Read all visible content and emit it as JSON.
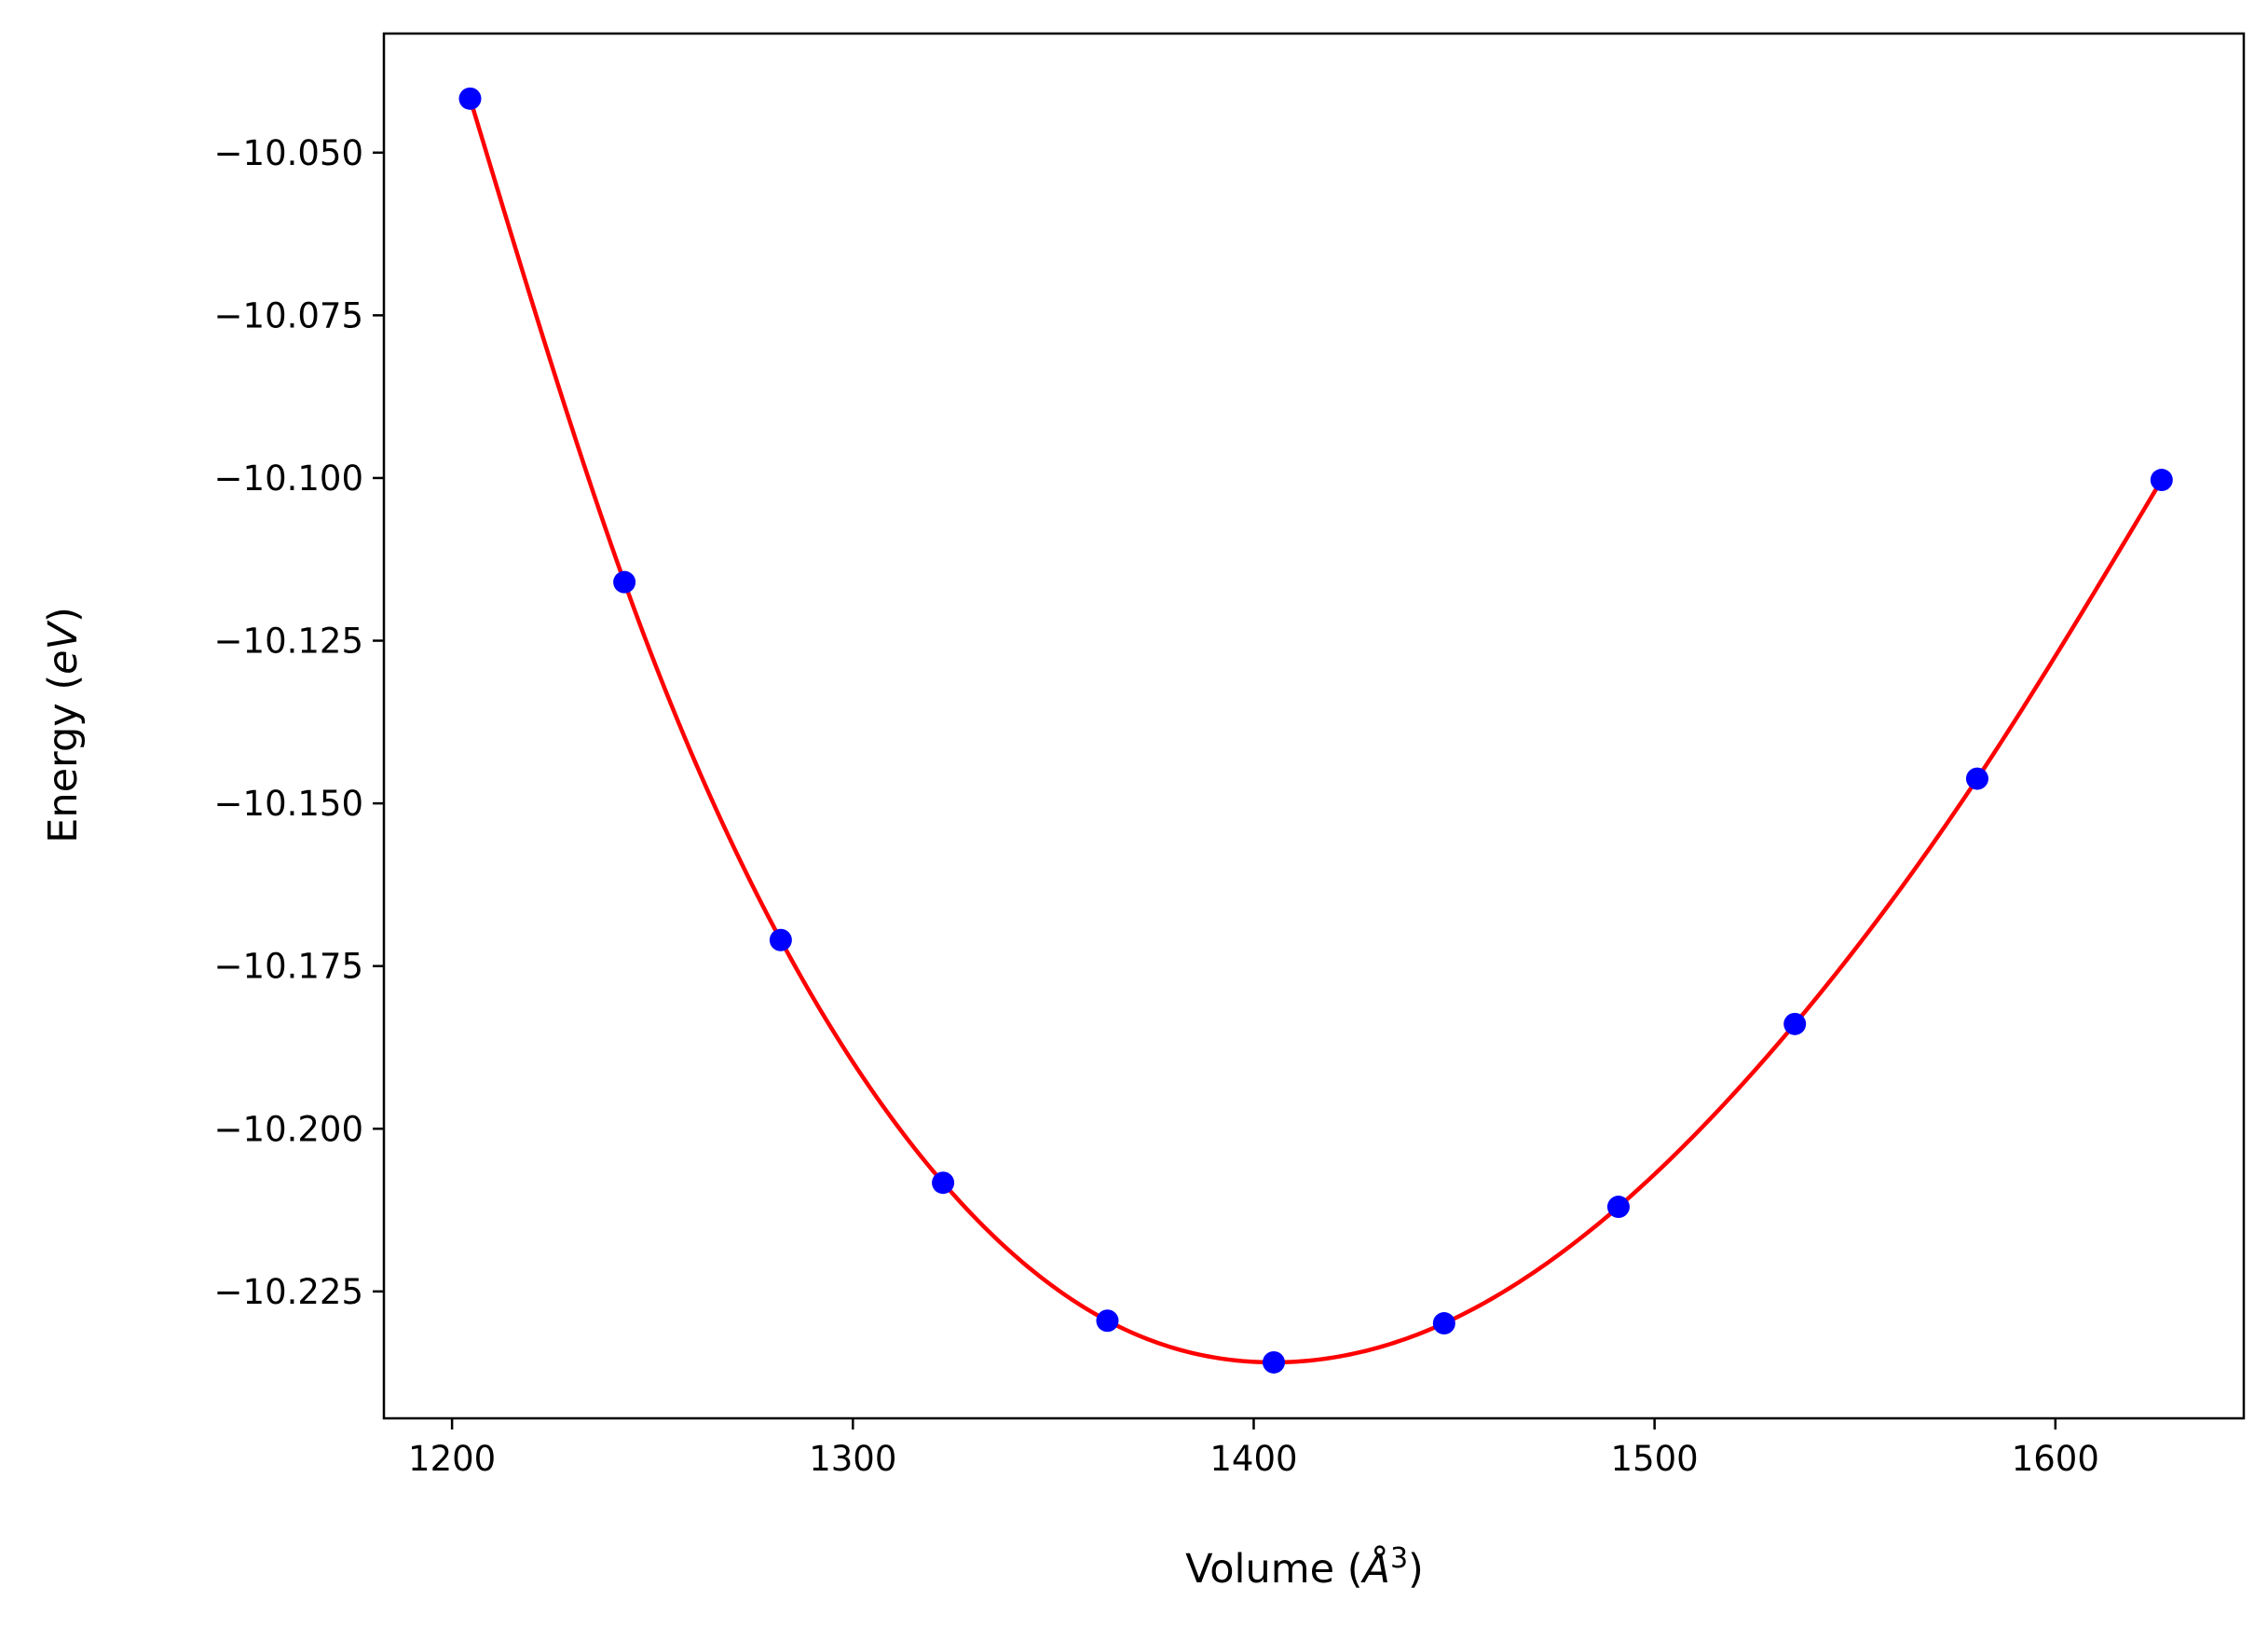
{
  "chart_data": {
    "type": "scatter",
    "title": "",
    "xlabel": "Volume (",
    "xlabel_unit": "Å",
    "xlabel_exp": "3",
    "xlabel_close": ")",
    "ylabel": "Energy (",
    "ylabel_unit": "eV",
    "ylabel_close": ")",
    "xlim": [
      1183,
      1647
    ],
    "ylim": [
      -10.2445,
      -10.0317
    ],
    "xticks": [
      1200,
      1300,
      1400,
      1500,
      1600
    ],
    "xtick_labels": [
      "1200",
      "1300",
      "1400",
      "1500",
      "1600"
    ],
    "yticks": [
      -10.05,
      -10.075,
      -10.1,
      -10.125,
      -10.15,
      -10.175,
      -10.2,
      -10.225
    ],
    "ytick_labels": [
      "−10.050",
      "−10.075",
      "−10.100",
      "−10.125",
      "−10.150",
      "−10.175",
      "−10.200",
      "−10.225"
    ],
    "grid": false,
    "series": [
      {
        "kind": "points",
        "color": "#0000ff",
        "x": [
          1204.5,
          1243.0,
          1282.0,
          1322.5,
          1363.5,
          1405.0,
          1447.5,
          1491.0,
          1535.0,
          1580.5,
          1626.5
        ],
        "y": [
          -10.0417,
          -10.116,
          -10.171,
          -10.2083,
          -10.2295,
          -10.2359,
          -10.2299,
          -10.212,
          -10.1839,
          -10.1462,
          -10.1003
        ]
      },
      {
        "kind": "fit-curve",
        "color": "#ff0000",
        "fit_points_x": [
          1204.5,
          1243.0,
          1282.0,
          1322.5,
          1363.5,
          1405.0,
          1447.5,
          1491.0,
          1535.0,
          1580.5,
          1626.5
        ],
        "fit_points_y": [
          -10.0417,
          -10.116,
          -10.171,
          -10.2083,
          -10.2295,
          -10.2359,
          -10.2299,
          -10.212,
          -10.1839,
          -10.1462,
          -10.1003
        ]
      }
    ]
  }
}
